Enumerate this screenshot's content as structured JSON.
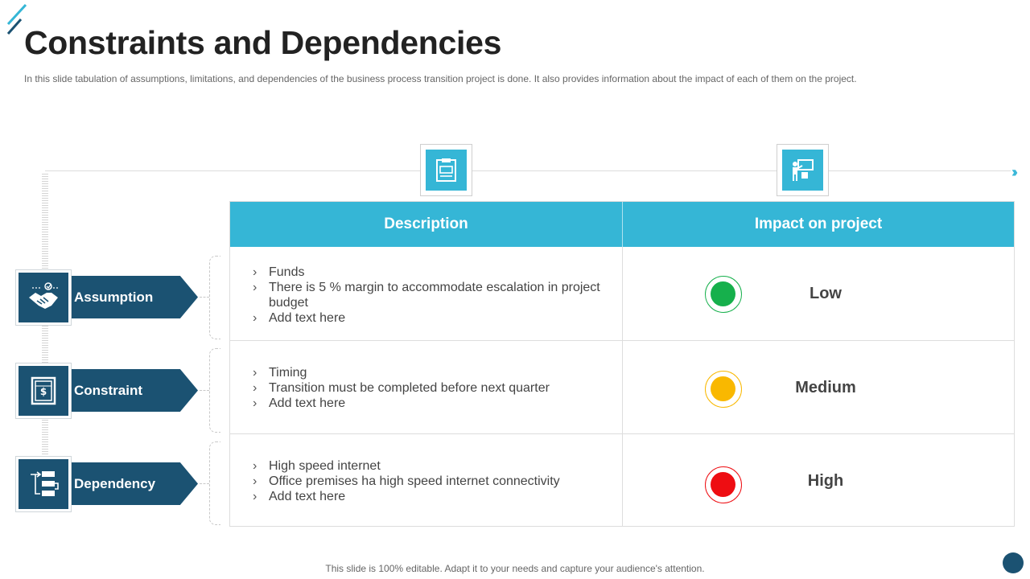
{
  "header": {
    "title": "Constraints and Dependencies",
    "subtitle": "In this slide tabulation of assumptions, limitations, and dependencies of the business process transition project is done. It also provides  information  about the impact of each of them on the project."
  },
  "table": {
    "columns": [
      "Description",
      "Impact on project"
    ],
    "rows": [
      {
        "label": "Assumption",
        "icon": "handshake-icon",
        "bullets": [
          "Funds",
          "There is 5 % margin to accommodate escalation in project budget",
          "Add text here"
        ],
        "impact": "Low",
        "signal_color": "#16b04c"
      },
      {
        "label": "Constraint",
        "icon": "safe-icon",
        "bullets": [
          "Timing",
          "Transition must be completed before next quarter",
          "Add text here"
        ],
        "impact": "Medium",
        "signal_color": "#f9b800"
      },
      {
        "label": "Dependency",
        "icon": "flow-icon",
        "bullets": [
          "High speed internet",
          "Office premises ha high speed internet connectivity",
          "Add text here"
        ],
        "impact": "High",
        "signal_color": "#ee0d12"
      }
    ]
  },
  "icons": {
    "description_header": "clipboard-icon",
    "impact_header": "presentation-icon"
  },
  "colors": {
    "accent": "#35b6d6",
    "dark": "#1b5272"
  },
  "footer": {
    "note": "This slide is 100% editable. Adapt it to your needs and capture your audience's attention."
  }
}
